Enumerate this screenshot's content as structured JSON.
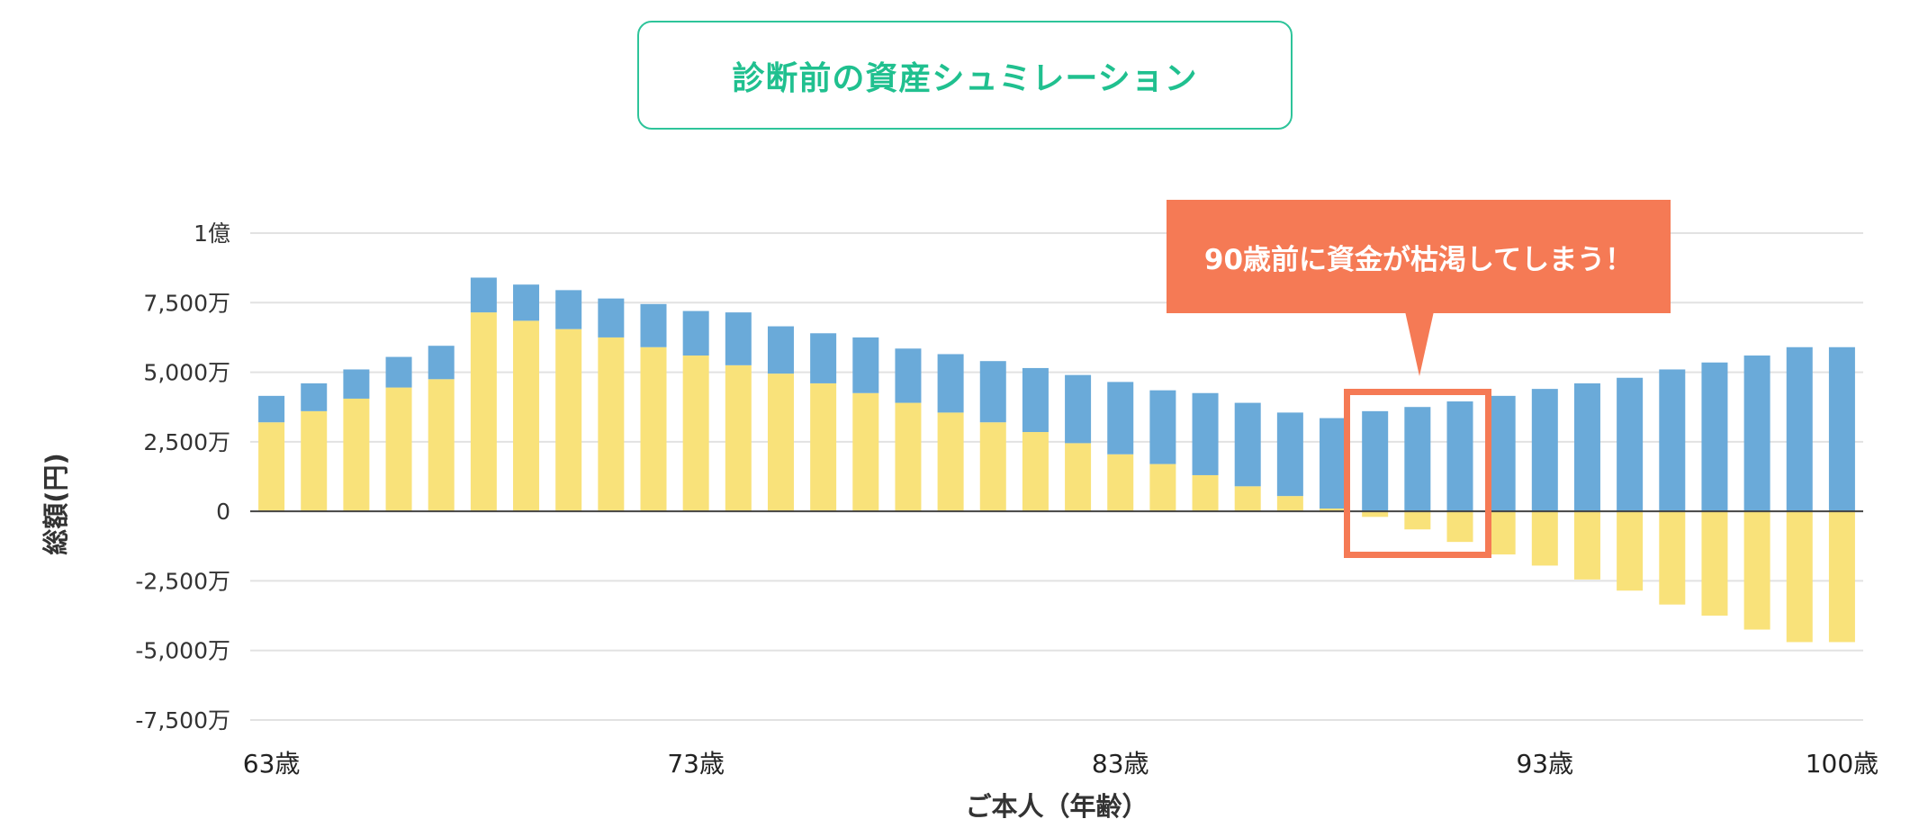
{
  "header": {
    "title": "診断前の資産シュミレーション"
  },
  "callout": {
    "text": "90歳前に資金が枯渇してしまう！"
  },
  "colors": {
    "accent": "#20c08f",
    "savings": "#6aaad9",
    "assets": "#f9e27a",
    "alert": "#f57a55",
    "grid": "#e2e2e2",
    "axis": "#444444"
  },
  "chart_data": {
    "type": "bar",
    "stacked": true,
    "xlabel": "ご本人（年齢）",
    "ylabel": "総額(円)",
    "ylim": [
      -7500,
      10000
    ],
    "yunit": "万円",
    "yticks": [
      {
        "value": 10000,
        "label": "1億"
      },
      {
        "value": 7500,
        "label": "7,500万"
      },
      {
        "value": 5000,
        "label": "5,000万"
      },
      {
        "value": 2500,
        "label": "2,500万"
      },
      {
        "value": 0,
        "label": "0"
      },
      {
        "value": -2500,
        "label": "-2,500万"
      },
      {
        "value": -5000,
        "label": "-5,000万"
      },
      {
        "value": -7500,
        "label": "-7,500万"
      }
    ],
    "xticks": [
      {
        "age": 63,
        "label": "63歳"
      },
      {
        "age": 73,
        "label": "73歳"
      },
      {
        "age": 83,
        "label": "83歳"
      },
      {
        "age": 93,
        "label": "93歳"
      },
      {
        "age": 100,
        "label": "100歳"
      }
    ],
    "categories": [
      63,
      64,
      65,
      66,
      67,
      68,
      69,
      70,
      71,
      72,
      73,
      74,
      75,
      76,
      77,
      78,
      79,
      80,
      81,
      82,
      83,
      84,
      85,
      86,
      87,
      88,
      89,
      90,
      91,
      92,
      93,
      94,
      95,
      96,
      97,
      98,
      99,
      100
    ],
    "series": [
      {
        "color": "#f9e27a",
        "values": [
          3200,
          3600,
          4050,
          4450,
          4750,
          7150,
          6850,
          6550,
          6250,
          5900,
          5600,
          5250,
          4950,
          4600,
          4250,
          3900,
          3550,
          3200,
          2850,
          2450,
          2050,
          1700,
          1300,
          900,
          550,
          100,
          -200,
          -650,
          -1100,
          -1550,
          -1950,
          -2450,
          -2850,
          -3350,
          -3750,
          -4250,
          -4700,
          -4700
        ]
      },
      {
        "color": "#6aaad9",
        "values": [
          950,
          1000,
          1050,
          1100,
          1200,
          1250,
          1300,
          1400,
          1400,
          1550,
          1600,
          1900,
          1700,
          1800,
          2000,
          1950,
          2100,
          2200,
          2300,
          2450,
          2600,
          2650,
          2950,
          3000,
          3000,
          3250,
          3600,
          3750,
          3950,
          4150,
          4400,
          4600,
          4800,
          5100,
          5350,
          5600,
          5900,
          5900
        ]
      }
    ]
  }
}
